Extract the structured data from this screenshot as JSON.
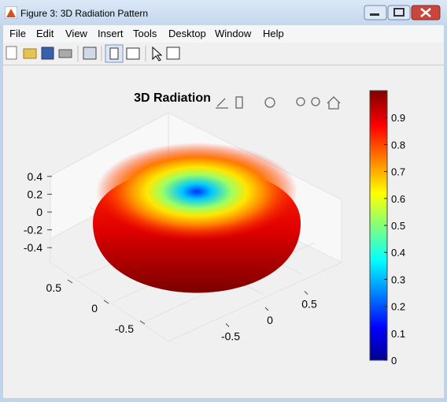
{
  "window": {
    "title": "Figure 3: 3D Radiation Pattern"
  },
  "menu": [
    "File",
    "Edit",
    "View",
    "Insert",
    "Tools",
    "Desktop",
    "Window",
    "Help"
  ],
  "chart": {
    "type": "surface",
    "title": "3D Radiation",
    "zticks": [
      -0.4,
      -0.2,
      0,
      0.2,
      0.4
    ],
    "xticks": [
      -0.5,
      0,
      0.5
    ],
    "yticks": [
      -0.5,
      0,
      0.5
    ],
    "colorbar": {
      "lim": [
        0,
        1
      ],
      "ticks": [
        0,
        0.1,
        0.2,
        0.3,
        0.4,
        0.5,
        0.6,
        0.7,
        0.8,
        0.9
      ]
    }
  }
}
